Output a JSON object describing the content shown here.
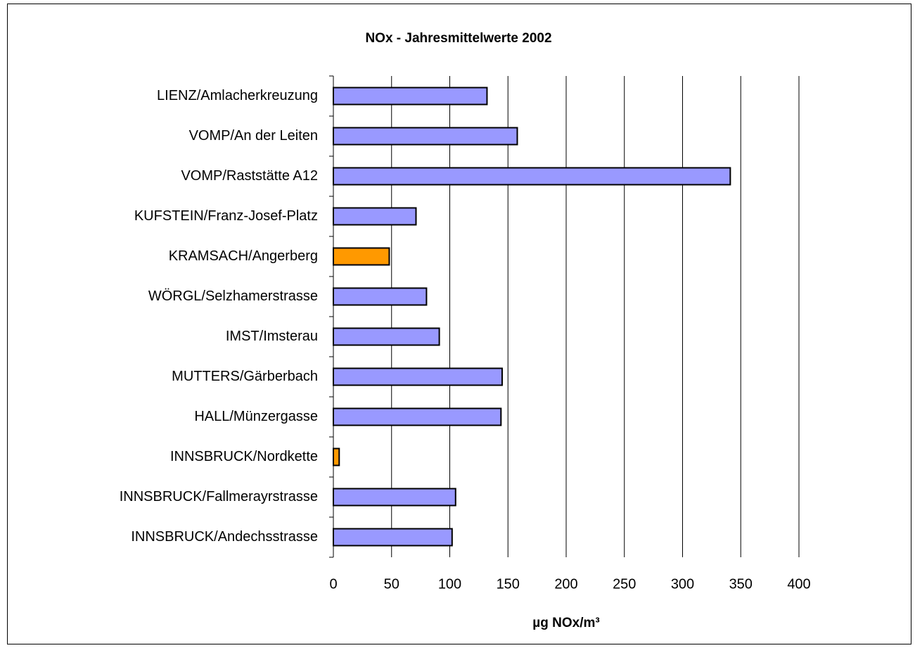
{
  "chart_data": {
    "type": "barh",
    "title": "NOx - Jahresmittelwerte 2002",
    "xlabel": "µg NOx/m³",
    "categories": [
      "LIENZ/Amlacherkreuzung",
      "VOMP/An der Leiten",
      "VOMP/Raststätte A12",
      "KUFSTEIN/Franz-Josef-Platz",
      "KRAMSACH/Angerberg",
      "WÖRGL/Selzhamerstrasse",
      "IMST/Imsterau",
      "MUTTERS/Gärberbach",
      "HALL/Münzergasse",
      "INNSBRUCK/Nordkette",
      "INNSBRUCK/Fallmerayrstrasse",
      "INNSBRUCK/Andechsstrasse"
    ],
    "values": [
      132,
      158,
      341,
      71,
      48,
      80,
      91,
      145,
      144,
      5,
      105,
      102
    ],
    "colors": [
      "#9999ff",
      "#9999ff",
      "#9999ff",
      "#9999ff",
      "#ff9900",
      "#9999ff",
      "#9999ff",
      "#9999ff",
      "#9999ff",
      "#ff9900",
      "#9999ff",
      "#9999ff"
    ],
    "xlim": [
      0,
      400
    ],
    "xticks": [
      0,
      50,
      100,
      150,
      200,
      250,
      300,
      350,
      400
    ],
    "grid": true
  }
}
